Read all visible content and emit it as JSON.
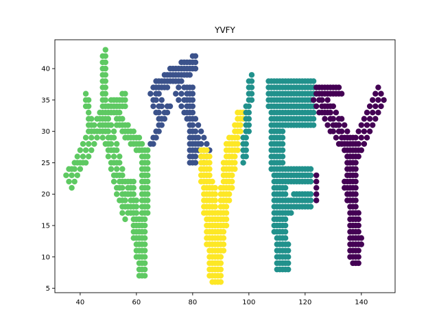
{
  "chart_data": {
    "type": "scatter",
    "title": "YVFY",
    "xlabel": "",
    "ylabel": "",
    "xlim": [
      31,
      152
    ],
    "ylim": [
      4.3,
      44.6
    ],
    "xticks": [
      40,
      60,
      80,
      100,
      120,
      140
    ],
    "yticks": [
      5,
      10,
      15,
      20,
      25,
      30,
      35,
      40
    ],
    "grid": false,
    "marker": "circle",
    "series": [
      {
        "color": "#5ec962",
        "letter": "Y",
        "strokes": [
          {
            "from": [
              36,
              22
            ],
            "to": [
              49,
              33
            ],
            "width": 3
          },
          {
            "from": [
              42,
              36
            ],
            "to": [
              44,
              30
            ],
            "width": 2
          },
          {
            "from": [
              49,
              43
            ],
            "to": [
              48,
              32
            ],
            "width": 2
          },
          {
            "from": [
              49,
              33
            ],
            "to": [
              56,
              35
            ],
            "width": 3
          },
          {
            "from": [
              48,
              33
            ],
            "to": [
              57,
              17
            ],
            "width": 4
          },
          {
            "from": [
              53,
              32
            ],
            "to": [
              64,
              26
            ],
            "width": 3
          },
          {
            "from": [
              58,
              22
            ],
            "to": [
              62,
              7
            ],
            "width": 3
          },
          {
            "from": [
              63,
              25
            ],
            "to": [
              62,
              8
            ],
            "width": 3
          }
        ]
      },
      {
        "color": "#3b528b",
        "letter": "V",
        "strokes": [
          {
            "from": [
              66,
              37
            ],
            "to": [
              69,
              32
            ],
            "width": 3
          },
          {
            "from": [
              65,
              28
            ],
            "to": [
              72,
              34
            ],
            "width": 2
          },
          {
            "from": [
              66,
              37
            ],
            "to": [
              77,
              39
            ],
            "width": 2
          },
          {
            "from": [
              70,
              38
            ],
            "to": [
              81,
              41
            ],
            "width": 3
          },
          {
            "from": [
              75,
              37
            ],
            "to": [
              85,
              26
            ],
            "width": 3
          },
          {
            "from": [
              79,
              37
            ],
            "to": [
              80,
              25
            ],
            "width": 3
          }
        ]
      },
      {
        "color": "#fde725",
        "letter": "V",
        "strokes": [
          {
            "from": [
              84,
              27
            ],
            "to": [
              88,
              6
            ],
            "width": 4
          },
          {
            "from": [
              86,
              22
            ],
            "to": [
              89,
              6
            ],
            "width": 4
          },
          {
            "from": [
              88,
              7
            ],
            "to": [
              94,
              29
            ],
            "width": 4
          },
          {
            "from": [
              90,
              14
            ],
            "to": [
              97,
              33
            ],
            "width": 3
          }
        ]
      },
      {
        "color": "#21918c",
        "letter": "F",
        "strokes": [
          {
            "from": [
              98,
              25
            ],
            "to": [
              101,
              39
            ],
            "width": 2
          },
          {
            "from": [
              109,
              38
            ],
            "to": [
              112,
              8
            ],
            "width": 5
          },
          {
            "from": [
              109,
              36
            ],
            "to": [
              123,
              36
            ],
            "width": 4
          },
          {
            "from": [
              109,
              32
            ],
            "to": [
              123,
              32
            ],
            "width": 4
          },
          {
            "from": [
              109,
              23
            ],
            "to": [
              122,
              23
            ],
            "width": 3
          },
          {
            "from": [
              109,
              18
            ],
            "to": [
              122,
              19
            ],
            "width": 3
          }
        ]
      },
      {
        "color": "#440154",
        "letter": "Y",
        "strokes": [
          {
            "from": [
              124,
              36
            ],
            "to": [
              138,
              26
            ],
            "width": 4
          },
          {
            "from": [
              147,
              36
            ],
            "to": [
              137,
              26
            ],
            "width": 3
          },
          {
            "from": [
              124,
              37
            ],
            "to": [
              133,
              36
            ],
            "width": 2
          },
          {
            "from": [
              136,
              27
            ],
            "to": [
              138,
              9
            ],
            "width": 4
          },
          {
            "from": [
              135,
              22
            ],
            "to": [
              139,
              12
            ],
            "width": 3
          },
          {
            "from": [
              124,
              23
            ],
            "to": [
              124,
              19
            ],
            "width": 1
          }
        ]
      }
    ]
  }
}
